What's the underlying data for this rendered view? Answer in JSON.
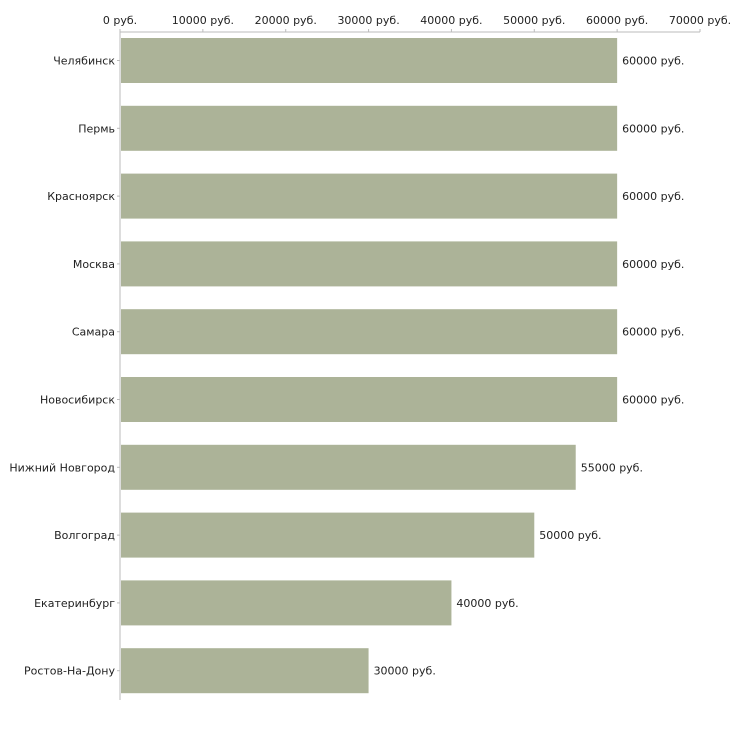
{
  "chart_data": {
    "type": "bar",
    "orientation": "horizontal",
    "title": "",
    "xlabel": "",
    "ylabel": "",
    "xlim": [
      0,
      70000
    ],
    "ticks": [
      0,
      10000,
      20000,
      30000,
      40000,
      50000,
      60000,
      70000
    ],
    "tick_labels": [
      "0 руб.",
      "10000 руб.",
      "20000 руб.",
      "30000 руб.",
      "40000 руб.",
      "50000 руб.",
      "60000 руб.",
      "70000 руб."
    ],
    "axis_position": "top",
    "categories": [
      "Челябинск",
      "Пермь",
      "Красноярск",
      "Москва",
      "Самара",
      "Новосибирск",
      "Нижний Новгород",
      "Волгоград",
      "Екатеринбург",
      "Ростов-На-Дону"
    ],
    "values": [
      60000,
      60000,
      60000,
      60000,
      60000,
      60000,
      55000,
      50000,
      40000,
      30000
    ],
    "value_labels": [
      "60000 руб.",
      "60000 руб.",
      "60000 руб.",
      "60000 руб.",
      "60000 руб.",
      "60000 руб.",
      "55000 руб.",
      "50000 руб.",
      "40000 руб.",
      "30000 руб."
    ],
    "bar_color": "#acb398",
    "axis_color": "#bbbbbb",
    "text_color": "#222222"
  }
}
